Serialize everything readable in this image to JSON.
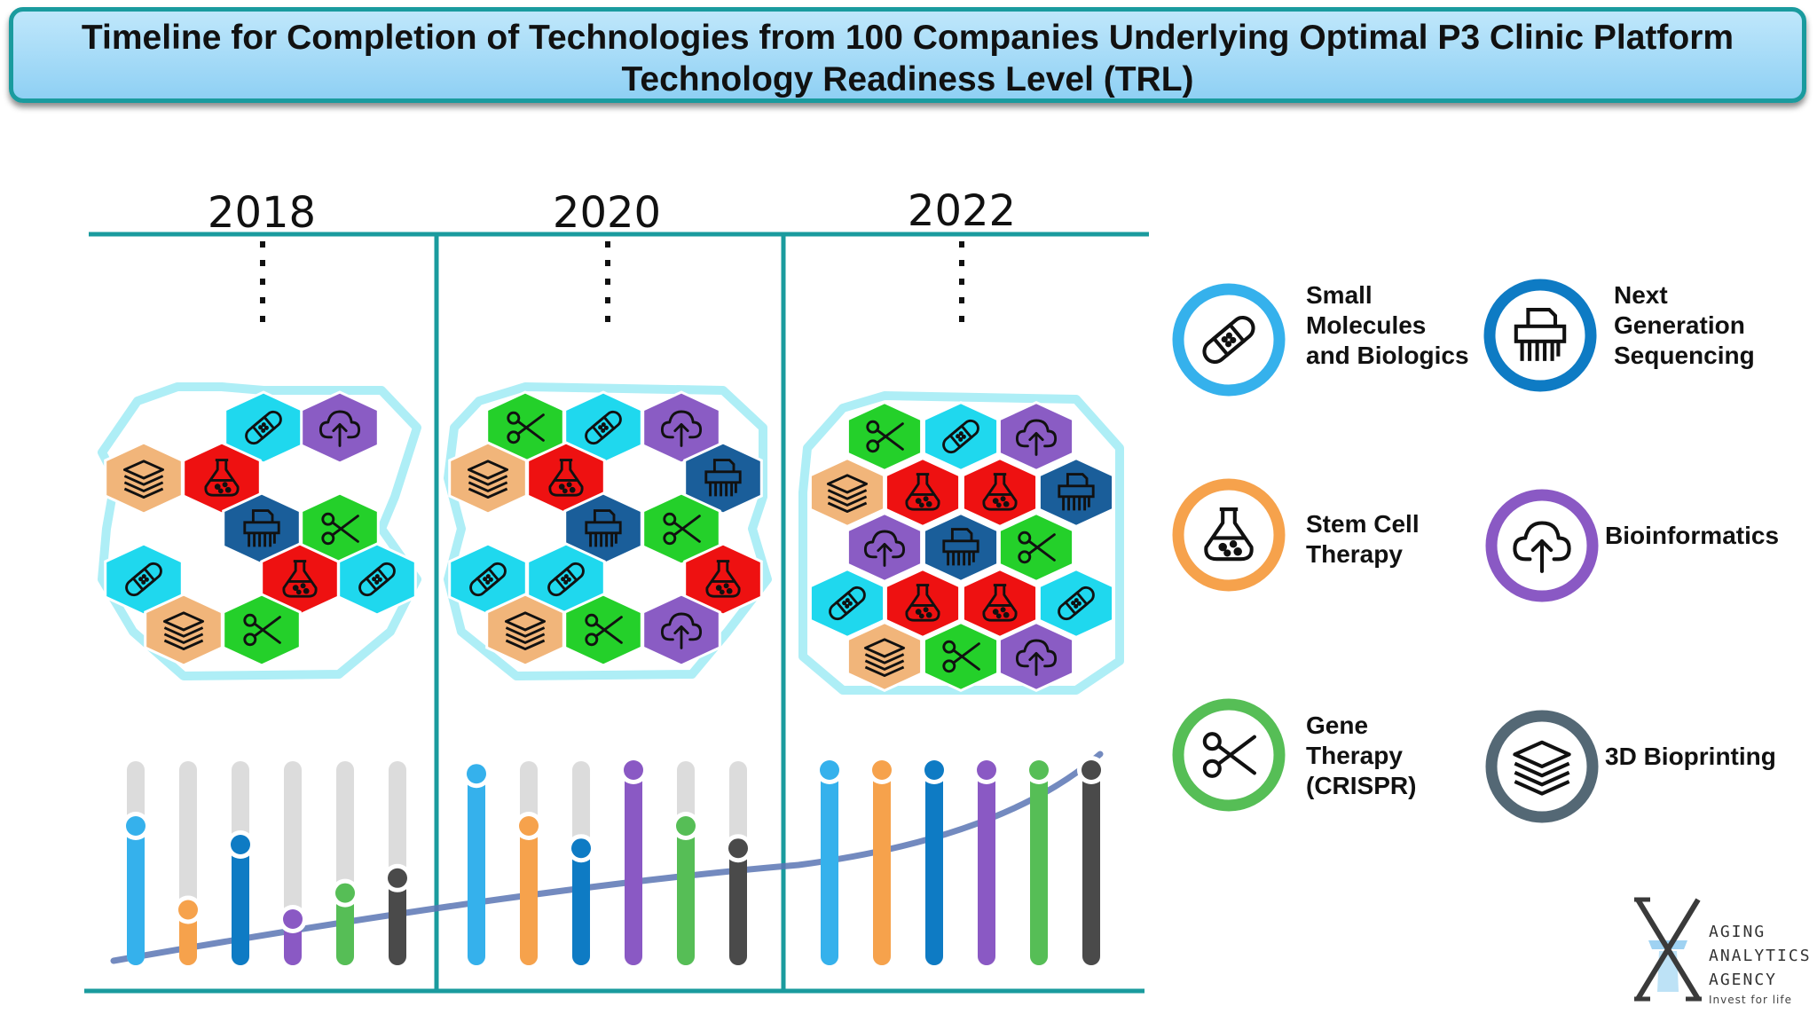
{
  "header": {
    "line1": "Timeline for Completion of Technologies from 100 Companies Underlying Optimal P3 Clinic Platform",
    "line2": "Technology Readiness Level (TRL)"
  },
  "colors": {
    "teal": "#1a9b9e",
    "small_molecules": "#35b1ec",
    "stem_cell": "#f6a24c",
    "ngs": "#0e7bc4",
    "bioinformatics": "#8a59c4",
    "gene_therapy": "#56be56",
    "bioprinting": "#4a4a4a",
    "track": "#dcdcdc",
    "trend": "#5a75b4"
  },
  "legend": [
    {
      "key": "small_molecules",
      "label_lines": [
        "Small",
        "Molecules",
        "and Biologics"
      ],
      "icon": "bandage-icon",
      "ring": "#35b1ec"
    },
    {
      "key": "ngs",
      "label_lines": [
        "Next",
        "Generation",
        "Sequencing"
      ],
      "icon": "shredder-icon",
      "ring": "#0e7bc4"
    },
    {
      "key": "stem_cell",
      "label_lines": [
        "Stem Cell",
        "Therapy"
      ],
      "icon": "flask-icon",
      "ring": "#f6a24c"
    },
    {
      "key": "bioinformatics",
      "label_lines": [
        "Bioinformatics"
      ],
      "icon": "cloud-upload-icon",
      "ring": "#8a59c4"
    },
    {
      "key": "gene_therapy",
      "label_lines": [
        "Gene",
        "Therapy",
        "(CRISPR)"
      ],
      "icon": "scissors-icon",
      "ring": "#56be56"
    },
    {
      "key": "bioprinting",
      "label_lines": [
        "3D Bioprinting"
      ],
      "icon": "layers-icon",
      "ring": "#546875"
    }
  ],
  "logo": {
    "line1": "AGING",
    "line2": "ANALYTICS",
    "line3": "AGENCY",
    "tagline": "Invest for life"
  },
  "chart_data": {
    "type": "bar",
    "title": "Technology Readiness Level (TRL)",
    "categories": [
      "2018",
      "2020",
      "2022"
    ],
    "ylim": [
      0,
      100
    ],
    "series": [
      {
        "name": "Small Molecules and Biologics",
        "key": "small_molecules",
        "values": [
          70,
          98,
          100
        ]
      },
      {
        "name": "Stem Cell Therapy",
        "key": "stem_cell",
        "values": [
          25,
          70,
          100
        ]
      },
      {
        "name": "Next Generation Sequencing",
        "key": "ngs",
        "values": [
          60,
          58,
          100
        ]
      },
      {
        "name": "Bioinformatics",
        "key": "bioinformatics",
        "values": [
          20,
          100,
          100
        ]
      },
      {
        "name": "Gene Therapy (CRISPR)",
        "key": "gene_therapy",
        "values": [
          34,
          70,
          100
        ]
      },
      {
        "name": "3D Bioprinting",
        "key": "bioprinting",
        "values": [
          42,
          58,
          100
        ]
      }
    ],
    "trend": "rising curve",
    "hex_clusters": [
      {
        "year": "2018",
        "cells": [
          "small_molecules",
          "bioinformatics",
          "bioprinting",
          "stem_cell",
          "ngs",
          "gene_therapy",
          "small_molecules",
          "stem_cell",
          "small_molecules",
          "bioprinting",
          "gene_therapy"
        ]
      },
      {
        "year": "2020",
        "cells": [
          "gene_therapy",
          "small_molecules",
          "bioinformatics",
          "bioprinting",
          "stem_cell",
          "ngs",
          "ngs",
          "gene_therapy",
          "small_molecules",
          "stem_cell",
          "small_molecules",
          "bioprinting",
          "gene_therapy",
          "bioinformatics"
        ]
      },
      {
        "year": "2022",
        "cells": [
          "gene_therapy",
          "small_molecules",
          "bioinformatics",
          "bioprinting",
          "stem_cell",
          "stem_cell",
          "ngs",
          "bioinformatics",
          "ngs",
          "gene_therapy",
          "small_molecules",
          "stem_cell",
          "stem_cell",
          "small_molecules",
          "bioprinting",
          "gene_therapy",
          "bioinformatics"
        ]
      }
    ]
  }
}
